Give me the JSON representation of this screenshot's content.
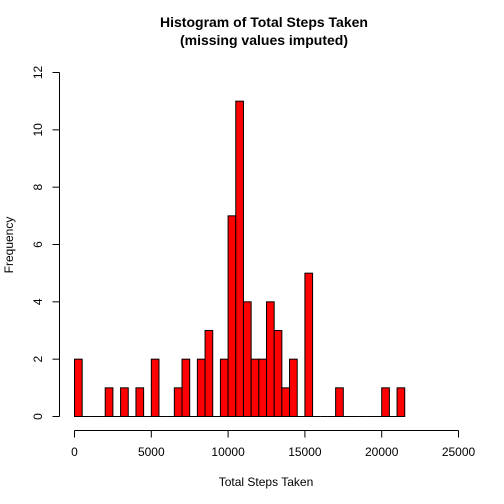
{
  "chart_data": {
    "type": "bar",
    "title": "Histogram of Total Steps Taken",
    "subtitle": "(missing values imputed)",
    "xlabel": "Total Steps Taken",
    "ylabel": "Frequency",
    "bar_color": "#ff0000",
    "bin_width": 500,
    "xlim": [
      0,
      25000
    ],
    "ylim": [
      0,
      12
    ],
    "x_ticks": [
      0,
      5000,
      10000,
      15000,
      20000,
      25000
    ],
    "y_ticks": [
      0,
      2,
      4,
      6,
      8,
      10,
      12
    ],
    "bins_start": [
      0,
      500,
      1000,
      1500,
      2000,
      2500,
      3000,
      3500,
      4000,
      4500,
      5000,
      5500,
      6000,
      6500,
      7000,
      7500,
      8000,
      8500,
      9000,
      9500,
      10000,
      10500,
      11000,
      11500,
      12000,
      12500,
      13000,
      13500,
      14000,
      14500,
      15000,
      15500,
      16000,
      16500,
      17000,
      17500,
      18000,
      18500,
      19000,
      19500,
      20000,
      20500,
      21000
    ],
    "values": [
      2,
      0,
      0,
      0,
      1,
      0,
      1,
      0,
      1,
      0,
      2,
      0,
      0,
      1,
      2,
      0,
      2,
      3,
      0,
      2,
      7,
      11,
      4,
      2,
      2,
      4,
      3,
      1,
      2,
      0,
      5,
      0,
      0,
      0,
      1,
      0,
      0,
      0,
      0,
      0,
      1,
      0,
      1
    ]
  }
}
